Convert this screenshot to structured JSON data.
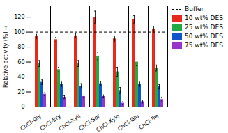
{
  "chart_data": {
    "type": "bar",
    "categories": [
      "ChCl-Gly",
      "ChCl-Ery",
      "ChCl-Xyli",
      "ChCl-Sor",
      "ChCl-Xylo",
      "ChCl-Glu",
      "ChCl-Tre"
    ],
    "series": [
      {
        "name": "10 wt% DES",
        "color": "#e8291c",
        "values": [
          94,
          90,
          95,
          120,
          91,
          117,
          104
        ],
        "errors": [
          3,
          3,
          3,
          8,
          4,
          5,
          4
        ]
      },
      {
        "name": "25 wt% DES",
        "color": "#22aa44",
        "values": [
          58,
          50,
          58,
          68,
          47,
          60,
          52
        ],
        "errors": [
          4,
          3,
          4,
          5,
          6,
          5,
          4
        ]
      },
      {
        "name": "50 wt% DES",
        "color": "#1155cc",
        "values": [
          33,
          30,
          28,
          31,
          22,
          30,
          27
        ],
        "errors": [
          3,
          3,
          3,
          3,
          4,
          3,
          3
        ]
      },
      {
        "name": "75 wt% DES",
        "color": "#9933cc",
        "values": [
          17,
          13,
          14,
          14,
          5,
          7,
          10
        ],
        "errors": [
          2,
          2,
          2,
          2,
          2,
          2,
          2
        ]
      }
    ],
    "hlines": [
      {
        "y": 100,
        "name": "Buffer",
        "color": "#000000",
        "line_style": "dashed"
      }
    ],
    "ylabel": "Relative activity (%)",
    "ylim": [
      0,
      135
    ],
    "yticks": [
      0,
      20,
      40,
      60,
      80,
      100,
      120
    ],
    "grid": false,
    "legend": "right"
  }
}
